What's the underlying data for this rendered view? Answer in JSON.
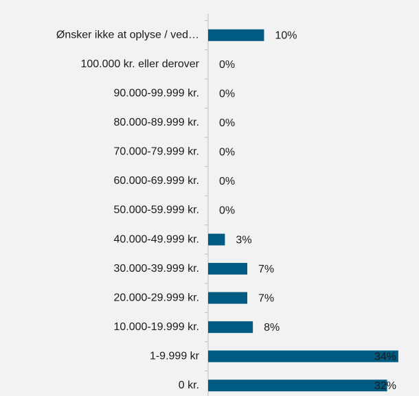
{
  "chart_data": {
    "type": "hbar",
    "categories": [
      "Ønsker ikke at oplyse / ved…",
      "100.000 kr. eller derover",
      "90.000-99.999 kr.",
      "80.000-89.999 kr.",
      "70.000-79.999 kr.",
      "60.000-69.999 kr.",
      "50.000-59.999 kr.",
      "40.000-49.999 kr.",
      "30.000-39.999 kr.",
      "20.000-29.999 kr.",
      "10.000-19.999 kr.",
      "1-9.999 kr",
      "0 kr."
    ],
    "values": [
      10,
      0,
      0,
      0,
      0,
      0,
      0,
      3,
      7,
      7,
      8,
      34,
      32
    ],
    "value_labels": [
      "10%",
      "0%",
      "0%",
      "0%",
      "0%",
      "0%",
      "0%",
      "3%",
      "7%",
      "7%",
      "8%",
      "34%",
      "32%"
    ],
    "color": "#005b82",
    "xlim": [
      0,
      35
    ]
  }
}
